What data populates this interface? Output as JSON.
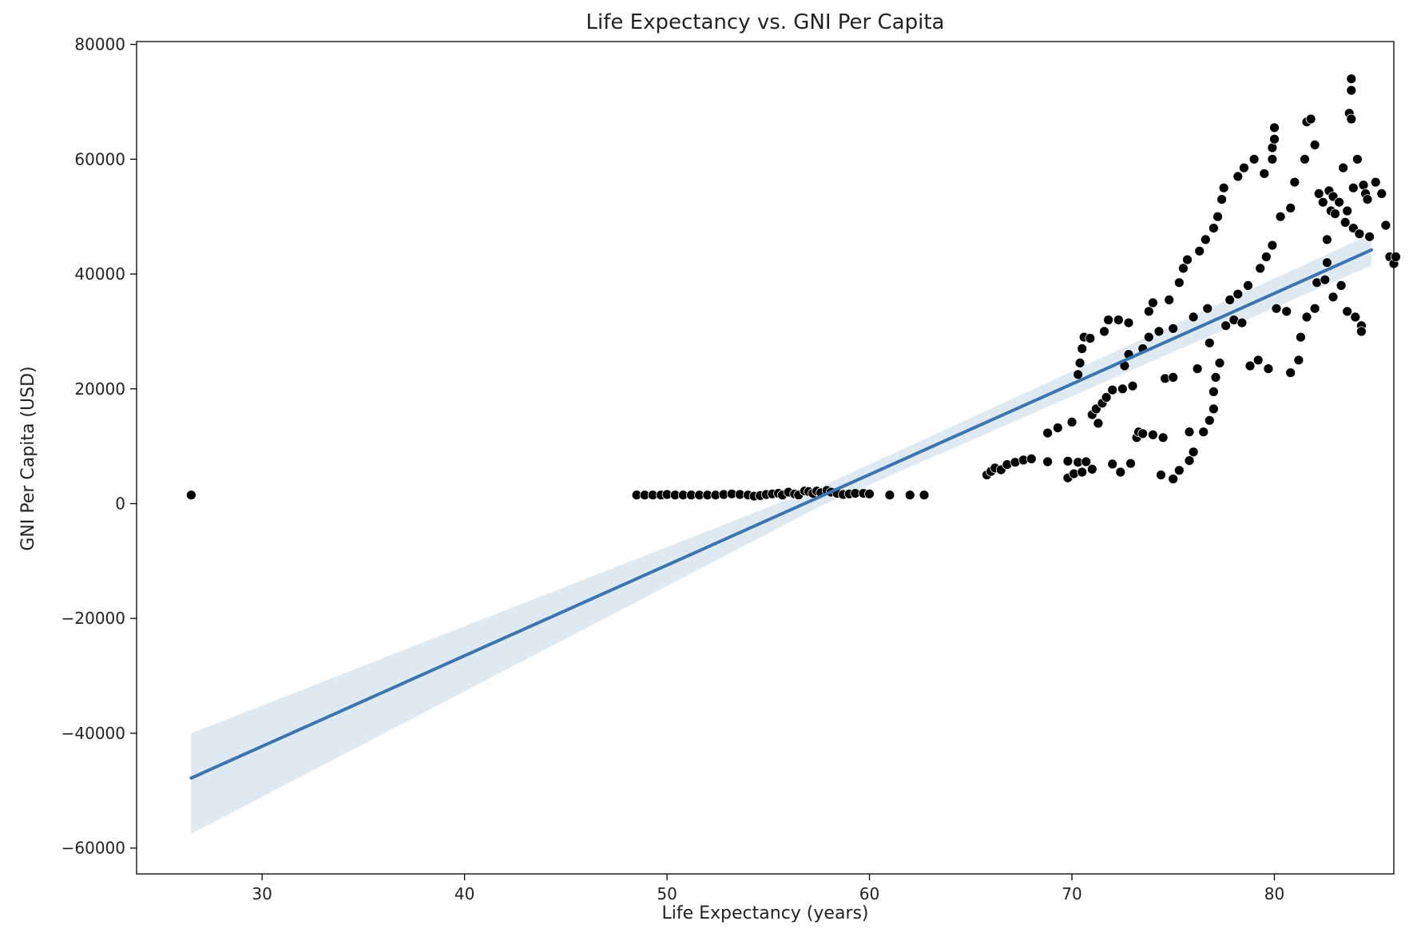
{
  "chart_data": {
    "type": "scatter",
    "title": "Life Expectancy vs. GNI Per Capita",
    "xlabel": "Life Expectancy (years)",
    "ylabel": "GNI Per Capita (USD)",
    "xlim": [
      23.8,
      85.9
    ],
    "ylim": [
      -64500,
      80500
    ],
    "xticks": [
      30,
      40,
      50,
      60,
      70,
      80
    ],
    "xtick_labels": [
      "30",
      "40",
      "50",
      "60",
      "70",
      "80"
    ],
    "yticks": [
      -60000,
      -40000,
      -20000,
      0,
      20000,
      40000,
      60000,
      80000
    ],
    "ytick_labels": [
      "−60000",
      "−40000",
      "−20000",
      "0",
      "20000",
      "40000",
      "60000",
      "80000"
    ],
    "grid": false,
    "marker_color": "#000000",
    "marker_edge_color": "#ffffff",
    "regression": {
      "color": "#3a75b0",
      "band_color": "#dce7f1",
      "x_start": 26.5,
      "x_end": 84.8,
      "y_start": -47800,
      "y_end": 44200,
      "ci_start": [
        -57500,
        -40000
      ],
      "ci_end": [
        41500,
        47000
      ],
      "ci_pivot_x": 57.6
    },
    "points": [
      [
        26.5,
        1500
      ],
      [
        48.5,
        1500
      ],
      [
        48.9,
        1500
      ],
      [
        49.3,
        1500
      ],
      [
        49.7,
        1500
      ],
      [
        50.0,
        1600
      ],
      [
        50.4,
        1500
      ],
      [
        50.8,
        1500
      ],
      [
        51.2,
        1500
      ],
      [
        51.6,
        1500
      ],
      [
        52.0,
        1500
      ],
      [
        52.4,
        1500
      ],
      [
        52.8,
        1600
      ],
      [
        53.2,
        1700
      ],
      [
        53.6,
        1600
      ],
      [
        54.0,
        1500
      ],
      [
        54.3,
        1300
      ],
      [
        54.6,
        1400
      ],
      [
        54.9,
        1600
      ],
      [
        55.2,
        1700
      ],
      [
        55.5,
        1800
      ],
      [
        55.7,
        1500
      ],
      [
        56.0,
        2000
      ],
      [
        56.3,
        1700
      ],
      [
        56.5,
        1500
      ],
      [
        56.8,
        2200
      ],
      [
        57.0,
        2100
      ],
      [
        57.2,
        1800
      ],
      [
        57.4,
        2200
      ],
      [
        57.6,
        1900
      ],
      [
        57.9,
        2300
      ],
      [
        58.1,
        2000
      ],
      [
        58.4,
        1800
      ],
      [
        58.7,
        1600
      ],
      [
        59.0,
        1700
      ],
      [
        59.3,
        1800
      ],
      [
        59.7,
        1800
      ],
      [
        60.0,
        1700
      ],
      [
        61.0,
        1500
      ],
      [
        62.0,
        1500
      ],
      [
        62.7,
        1500
      ],
      [
        65.8,
        5000
      ],
      [
        66.0,
        5600
      ],
      [
        66.2,
        6200
      ],
      [
        66.5,
        5900
      ],
      [
        66.8,
        6800
      ],
      [
        67.2,
        7200
      ],
      [
        67.6,
        7600
      ],
      [
        68.0,
        7800
      ],
      [
        68.8,
        7300
      ],
      [
        68.8,
        12300
      ],
      [
        69.3,
        13200
      ],
      [
        69.8,
        7400
      ],
      [
        69.8,
        4500
      ],
      [
        70.1,
        5200
      ],
      [
        70.0,
        14200
      ],
      [
        70.3,
        7200
      ],
      [
        70.5,
        5500
      ],
      [
        70.3,
        22500
      ],
      [
        70.4,
        24500
      ],
      [
        70.5,
        27000
      ],
      [
        70.6,
        29000
      ],
      [
        70.9,
        28800
      ],
      [
        70.7,
        7300
      ],
      [
        71.0,
        6000
      ],
      [
        71.0,
        15500
      ],
      [
        71.2,
        16500
      ],
      [
        71.3,
        14000
      ],
      [
        71.5,
        17500
      ],
      [
        71.6,
        30000
      ],
      [
        71.7,
        18500
      ],
      [
        71.8,
        32000
      ],
      [
        72.0,
        6900
      ],
      [
        72.0,
        19800
      ],
      [
        72.3,
        32000
      ],
      [
        72.4,
        5500
      ],
      [
        72.5,
        20000
      ],
      [
        72.6,
        24000
      ],
      [
        72.8,
        31500
      ],
      [
        72.9,
        7000
      ],
      [
        72.8,
        26000
      ],
      [
        73.0,
        20500
      ],
      [
        73.2,
        11500
      ],
      [
        73.3,
        12500
      ],
      [
        73.5,
        12200
      ],
      [
        73.5,
        27000
      ],
      [
        73.8,
        29000
      ],
      [
        73.8,
        33500
      ],
      [
        74.0,
        12000
      ],
      [
        74.0,
        35000
      ],
      [
        74.3,
        30000
      ],
      [
        74.5,
        11500
      ],
      [
        74.6,
        21800
      ],
      [
        74.4,
        5000
      ],
      [
        74.8,
        35500
      ],
      [
        75.0,
        30500
      ],
      [
        75.0,
        22000
      ],
      [
        75.0,
        4300
      ],
      [
        75.3,
        5800
      ],
      [
        75.3,
        38500
      ],
      [
        75.5,
        41000
      ],
      [
        75.7,
        42500
      ],
      [
        75.8,
        12500
      ],
      [
        75.8,
        7500
      ],
      [
        76.0,
        9000
      ],
      [
        76.0,
        32500
      ],
      [
        76.2,
        23500
      ],
      [
        76.3,
        44000
      ],
      [
        76.5,
        12500
      ],
      [
        76.6,
        46000
      ],
      [
        76.7,
        34000
      ],
      [
        76.8,
        28000
      ],
      [
        76.8,
        14500
      ],
      [
        77.0,
        16500
      ],
      [
        77.0,
        19500
      ],
      [
        77.1,
        22000
      ],
      [
        77.3,
        24500
      ],
      [
        77.0,
        48000
      ],
      [
        77.2,
        50000
      ],
      [
        77.4,
        53000
      ],
      [
        77.5,
        55000
      ],
      [
        77.6,
        31000
      ],
      [
        77.8,
        35500
      ],
      [
        78.0,
        32000
      ],
      [
        78.2,
        36500
      ],
      [
        78.2,
        57000
      ],
      [
        78.5,
        58500
      ],
      [
        78.4,
        31500
      ],
      [
        78.7,
        38000
      ],
      [
        78.8,
        24000
      ],
      [
        79.0,
        60000
      ],
      [
        79.2,
        25000
      ],
      [
        79.3,
        41000
      ],
      [
        79.6,
        43000
      ],
      [
        79.5,
        57500
      ],
      [
        79.7,
        23500
      ],
      [
        79.9,
        45000
      ],
      [
        79.9,
        60000
      ],
      [
        79.9,
        62000
      ],
      [
        80.0,
        63500
      ],
      [
        80.0,
        65500
      ],
      [
        80.1,
        34000
      ],
      [
        80.3,
        50000
      ],
      [
        80.6,
        33500
      ],
      [
        80.8,
        51500
      ],
      [
        80.8,
        22800
      ],
      [
        81.0,
        56000
      ],
      [
        81.2,
        25000
      ],
      [
        81.3,
        29000
      ],
      [
        81.5,
        60000
      ],
      [
        81.6,
        66500
      ],
      [
        81.6,
        32500
      ],
      [
        81.8,
        67000
      ],
      [
        82.0,
        34000
      ],
      [
        82.1,
        38500
      ],
      [
        82.0,
        62500
      ],
      [
        82.2,
        54000
      ],
      [
        82.4,
        52500
      ],
      [
        82.5,
        39000
      ],
      [
        82.6,
        46000
      ],
      [
        82.6,
        42000
      ],
      [
        82.7,
        54500
      ],
      [
        82.8,
        51000
      ],
      [
        82.9,
        53500
      ],
      [
        82.9,
        36000
      ],
      [
        83.0,
        50500
      ],
      [
        83.2,
        52500
      ],
      [
        83.3,
        38000
      ],
      [
        83.4,
        58500
      ],
      [
        83.5,
        49000
      ],
      [
        83.6,
        51000
      ],
      [
        83.6,
        33500
      ],
      [
        83.7,
        68000
      ],
      [
        83.8,
        67000
      ],
      [
        83.8,
        72000
      ],
      [
        83.8,
        74000
      ],
      [
        83.9,
        55000
      ],
      [
        83.9,
        48000
      ],
      [
        84.0,
        32500
      ],
      [
        84.1,
        60000
      ],
      [
        84.2,
        47000
      ],
      [
        84.3,
        31000
      ],
      [
        84.3,
        30000
      ],
      [
        84.4,
        55500
      ],
      [
        84.5,
        54000
      ],
      [
        84.6,
        53000
      ],
      [
        84.7,
        46500
      ],
      [
        85.0,
        56000
      ],
      [
        85.3,
        54000
      ],
      [
        85.5,
        48500
      ],
      [
        85.7,
        43000
      ],
      [
        85.9,
        41800
      ],
      [
        86.0,
        43000
      ]
    ]
  }
}
